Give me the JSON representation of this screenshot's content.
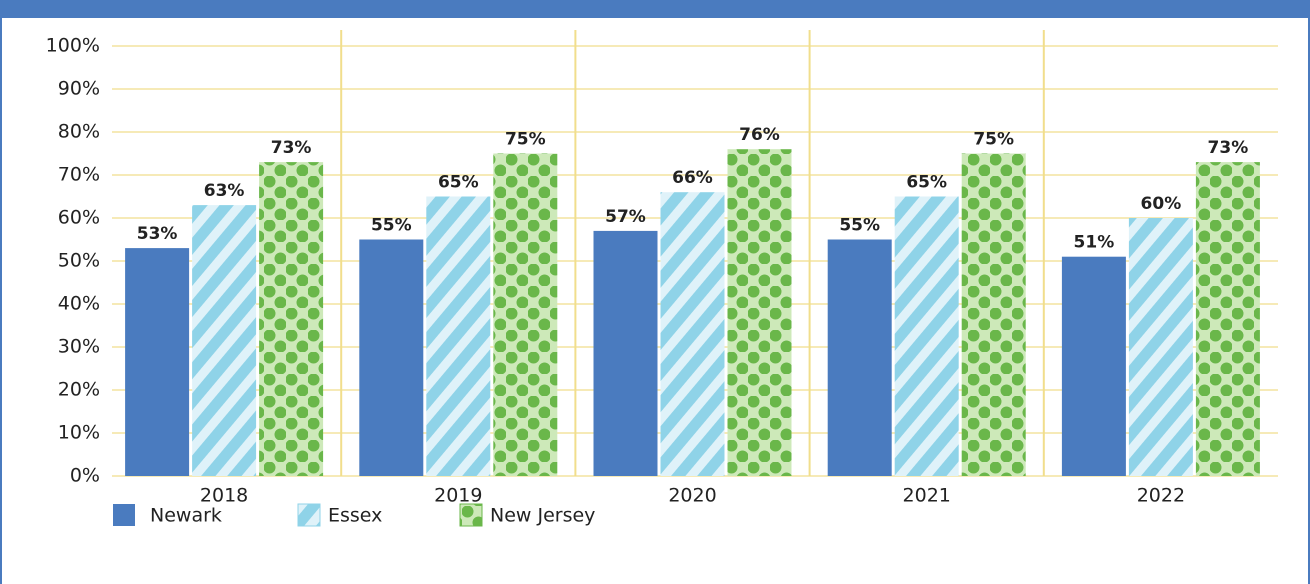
{
  "chart_data": {
    "type": "bar",
    "categories": [
      "2018",
      "2019",
      "2020",
      "2021",
      "2022"
    ],
    "series": [
      {
        "name": "Newark",
        "color": "#4a7bbf",
        "pattern": "solid",
        "values": [
          53,
          55,
          57,
          55,
          51
        ],
        "value_labels": [
          "53%",
          "55%",
          "57%",
          "55%",
          "51%"
        ]
      },
      {
        "name": "Essex",
        "color": "#8fd3e8",
        "pattern": "stripes",
        "values": [
          63,
          65,
          66,
          65,
          60
        ],
        "value_labels": [
          "63%",
          "65%",
          "66%",
          "65%",
          "60%"
        ]
      },
      {
        "name": "New Jersey",
        "color": "#6ab74a",
        "pattern": "dots",
        "values": [
          73,
          75,
          76,
          75,
          73
        ],
        "value_labels": [
          "73%",
          "75%",
          "76%",
          "75%",
          "73%"
        ]
      }
    ],
    "ylim": [
      0,
      100
    ],
    "yticks": [
      {
        "value": 0,
        "label": "0%"
      },
      {
        "value": 10,
        "label": "10%"
      },
      {
        "value": 20,
        "label": "20%"
      },
      {
        "value": 30,
        "label": "30%"
      },
      {
        "value": 40,
        "label": "40%"
      },
      {
        "value": 50,
        "label": "50%"
      },
      {
        "value": 60,
        "label": "60%"
      },
      {
        "value": 70,
        "label": "70%"
      },
      {
        "value": 80,
        "label": "80%"
      },
      {
        "value": 90,
        "label": "90%"
      },
      {
        "value": 100,
        "label": "100%"
      }
    ],
    "grid": true,
    "legend": "bottom-left"
  }
}
